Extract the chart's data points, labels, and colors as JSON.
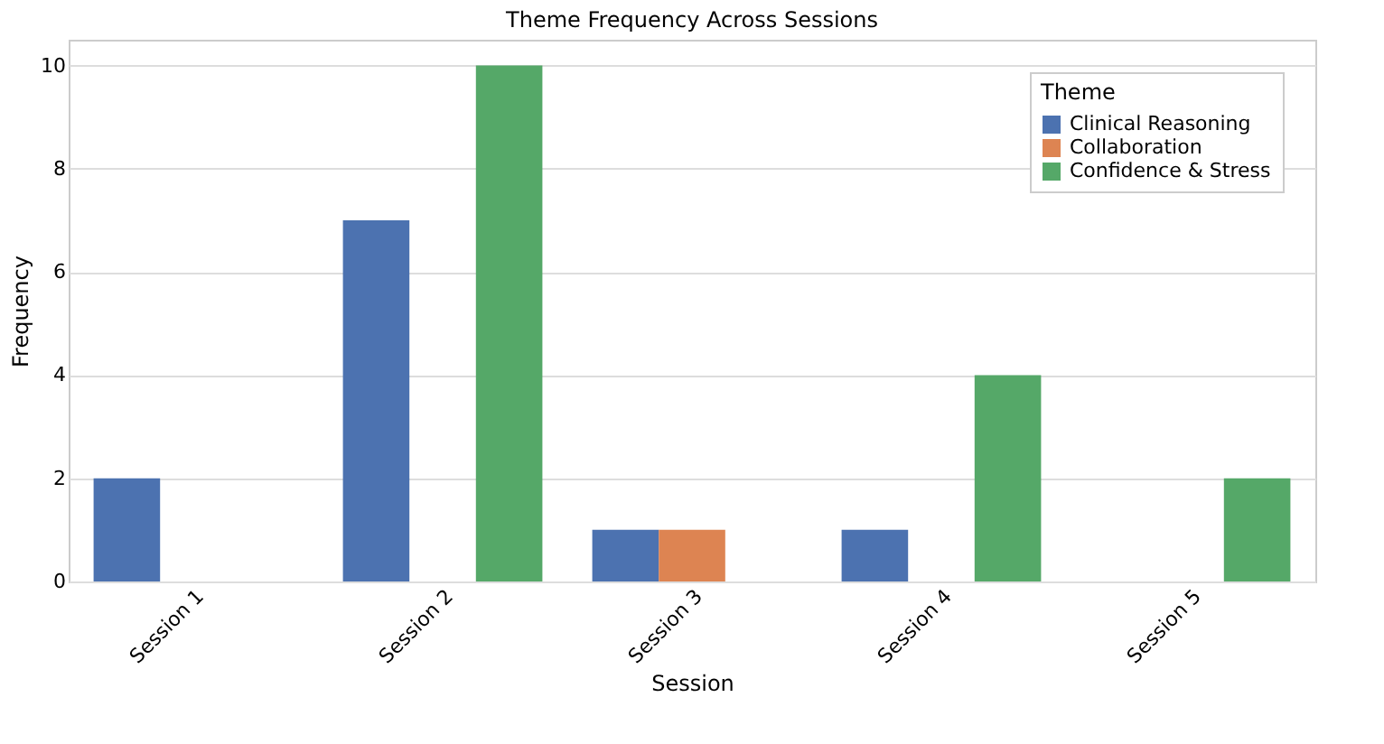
{
  "chart_data": {
    "type": "bar",
    "title": "Theme Frequency Across Sessions",
    "xlabel": "Session",
    "ylabel": "Frequency",
    "legend_title": "Theme",
    "categories": [
      "Session 1",
      "Session 2",
      "Session 3",
      "Session 4",
      "Session 5"
    ],
    "series": [
      {
        "name": "Clinical Reasoning",
        "color": "#4c72b0",
        "values": [
          2,
          7,
          1,
          1,
          null
        ]
      },
      {
        "name": "Collaboration",
        "color": "#dd8452",
        "values": [
          null,
          null,
          1,
          null,
          null
        ]
      },
      {
        "name": "Confidence & Stress",
        "color": "#55a868",
        "values": [
          null,
          10,
          null,
          4,
          2
        ]
      }
    ],
    "ylim": [
      0,
      10.5
    ],
    "yticks": [
      0,
      2,
      4,
      6,
      8,
      10
    ],
    "grid": "y",
    "legend": "top right"
  }
}
